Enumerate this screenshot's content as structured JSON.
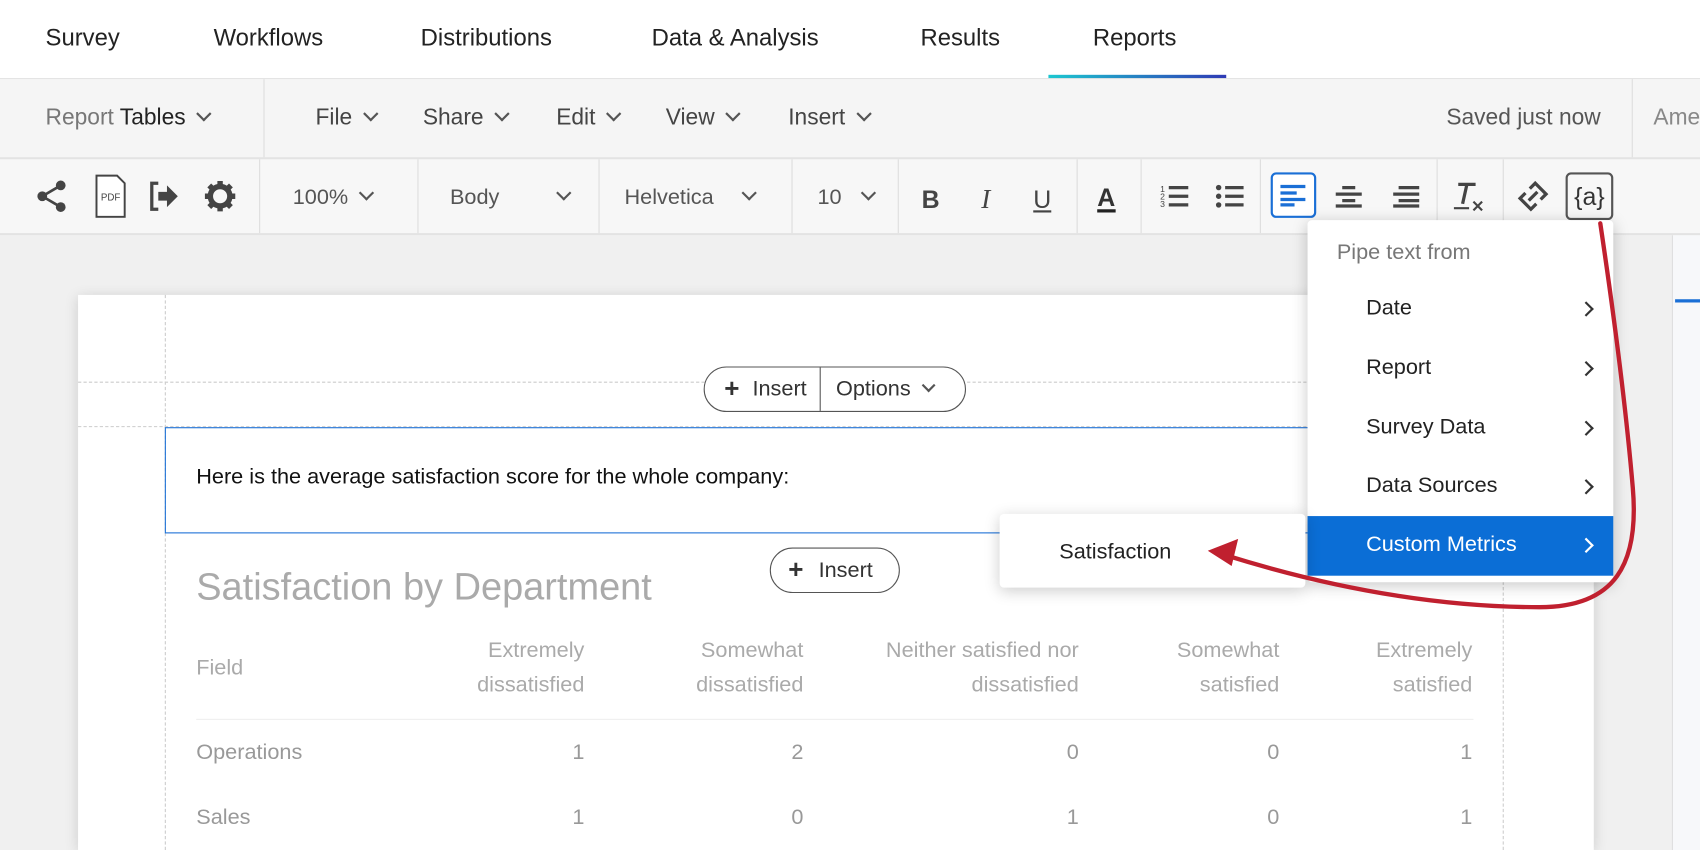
{
  "nav": {
    "tabs": [
      {
        "label": "Survey"
      },
      {
        "label": "Workflows"
      },
      {
        "label": "Distributions"
      },
      {
        "label": "Data & Analysis"
      },
      {
        "label": "Results"
      },
      {
        "label": "Reports",
        "active": true
      }
    ]
  },
  "menubar": {
    "report_prefix": "Report",
    "report_name": "Tables",
    "menus": [
      "File",
      "Share",
      "Edit",
      "View",
      "Insert"
    ],
    "status": "Saved just now",
    "truncated_right": "Ame"
  },
  "toolbar": {
    "pdf_label": "PDF",
    "zoom": "100%",
    "style": "Body",
    "font": "Helvetica",
    "size": "10",
    "bold": "B",
    "italic": "I",
    "underline": "U",
    "color": "A",
    "piped_text": "{a}",
    "active_alignment": "left",
    "accent": "#1a6fd6"
  },
  "report": {
    "insert_label": "Insert",
    "options_label": "Options",
    "text_block": "Here is the average satisfaction score for the whole company:",
    "table": {
      "title": "Satisfaction by Department",
      "columns": [
        [
          "Field",
          ""
        ],
        [
          "Extremely",
          "dissatisfied"
        ],
        [
          "Somewhat",
          "dissatisfied"
        ],
        [
          "Neither satisfied nor",
          "dissatisfied"
        ],
        [
          "Somewhat",
          "satisfied"
        ],
        [
          "Extremely",
          "satisfied"
        ]
      ],
      "rows": [
        [
          "Operations",
          "1",
          "2",
          "0",
          "0",
          "1"
        ],
        [
          "Sales",
          "1",
          "0",
          "1",
          "0",
          "1"
        ]
      ]
    }
  },
  "pipe_menu": {
    "header": "Pipe text from",
    "items": [
      "Date",
      "Report",
      "Survey Data",
      "Data Sources",
      "Custom Metrics"
    ],
    "highlighted": "Custom Metrics",
    "highlight_color": "#0b6ed6",
    "submenu": [
      "Satisfaction"
    ]
  },
  "annotation_color": "#c0202f"
}
